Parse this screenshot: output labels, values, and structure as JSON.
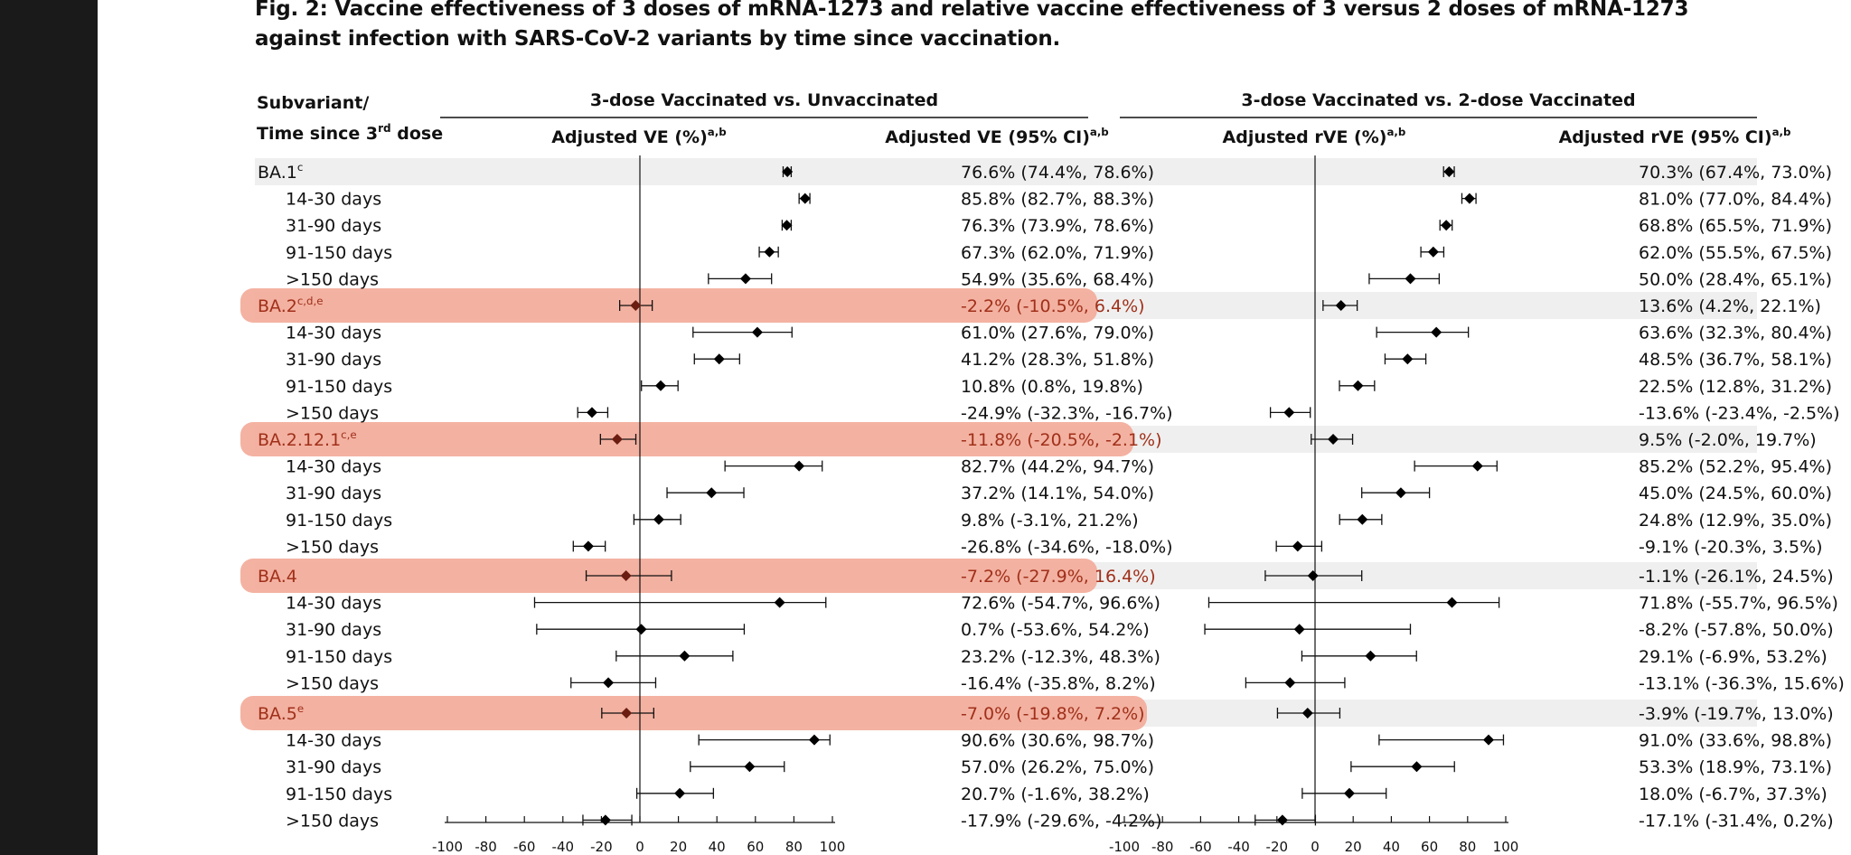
{
  "figure": {
    "title": "Fig. 2: Vaccine effectiveness of 3 doses of mRNA-1273 and relative vaccine effectiveness of 3 versus 2 doses of mRNA-1273 against infection with SARS-CoV-2 variants by time since vaccination.",
    "row_header": "Subvariant/",
    "row_header_line2": "Time since 3",
    "row_header_sup": "rd",
    "row_header_end": " dose",
    "highlight_color": "#f3aa98",
    "band_color": "#efefef"
  },
  "chart_data": [
    {
      "type": "forest",
      "title": "3-dose Vaccinated vs. Unvaccinated",
      "plot_header": "Adjusted VE (%)",
      "plot_header_sup": "a,b",
      "table_header": "Adjusted VE (95% CI)",
      "table_header_sup": "a,b",
      "xlim": [
        -100,
        100
      ],
      "xticks": [
        -100,
        -80,
        -60,
        -40,
        -20,
        0,
        20,
        40,
        60,
        80,
        100
      ],
      "rows": [
        {
          "label": "BA.1",
          "sup": "c",
          "group": true,
          "highlight": false,
          "est": 76.6,
          "lo": 74.4,
          "hi": 78.6,
          "text": "76.6% (74.4%, 78.6%)"
        },
        {
          "label": "14-30 days",
          "est": 85.8,
          "lo": 82.7,
          "hi": 88.3,
          "text": "85.8% (82.7%, 88.3%)"
        },
        {
          "label": "31-90 days",
          "est": 76.3,
          "lo": 73.9,
          "hi": 78.6,
          "text": "76.3% (73.9%, 78.6%)"
        },
        {
          "label": "91-150 days",
          "est": 67.3,
          "lo": 62.0,
          "hi": 71.9,
          "text": "67.3% (62.0%, 71.9%)"
        },
        {
          "label": ">150 days",
          "est": 54.9,
          "lo": 35.6,
          "hi": 68.4,
          "text": "54.9% (35.6%, 68.4%)"
        },
        {
          "label": "BA.2",
          "sup": "c,d,e",
          "group": true,
          "highlight": true,
          "est": -2.2,
          "lo": -10.5,
          "hi": 6.4,
          "text": "-2.2% (-10.5%, 6.4%)"
        },
        {
          "label": "14-30 days",
          "est": 61.0,
          "lo": 27.6,
          "hi": 79.0,
          "text": "61.0% (27.6%, 79.0%)"
        },
        {
          "label": "31-90 days",
          "est": 41.2,
          "lo": 28.3,
          "hi": 51.8,
          "text": "41.2% (28.3%, 51.8%)"
        },
        {
          "label": "91-150 days",
          "est": 10.8,
          "lo": 0.8,
          "hi": 19.8,
          "text": "10.8% (0.8%, 19.8%)"
        },
        {
          "label": ">150 days",
          "est": -24.9,
          "lo": -32.3,
          "hi": -16.7,
          "text": "-24.9% (-32.3%, -16.7%)"
        },
        {
          "label": "BA.2.12.1",
          "sup": "c,e",
          "group": true,
          "highlight": true,
          "est": -11.8,
          "lo": -20.5,
          "hi": -2.1,
          "text": "-11.8% (-20.5%, -2.1%)"
        },
        {
          "label": "14-30 days",
          "est": 82.7,
          "lo": 44.2,
          "hi": 94.7,
          "text": "82.7% (44.2%, 94.7%)"
        },
        {
          "label": "31-90 days",
          "est": 37.2,
          "lo": 14.1,
          "hi": 54.0,
          "text": "37.2% (14.1%, 54.0%)"
        },
        {
          "label": "91-150 days",
          "est": 9.8,
          "lo": -3.1,
          "hi": 21.2,
          "text": "9.8% (-3.1%, 21.2%)"
        },
        {
          "label": ">150 days",
          "est": -26.8,
          "lo": -34.6,
          "hi": -18.0,
          "text": "-26.8% (-34.6%, -18.0%)"
        },
        {
          "label": "BA.4",
          "sup": "",
          "group": true,
          "highlight": true,
          "est": -7.2,
          "lo": -27.9,
          "hi": 16.4,
          "text": "-7.2% (-27.9%, 16.4%)"
        },
        {
          "label": "14-30 days",
          "est": 72.6,
          "lo": -54.7,
          "hi": 96.6,
          "text": "72.6% (-54.7%, 96.6%)"
        },
        {
          "label": "31-90 days",
          "est": 0.7,
          "lo": -53.6,
          "hi": 54.2,
          "text": "0.7% (-53.6%, 54.2%)"
        },
        {
          "label": "91-150 days",
          "est": 23.2,
          "lo": -12.3,
          "hi": 48.3,
          "text": "23.2% (-12.3%, 48.3%)"
        },
        {
          "label": ">150 days",
          "est": -16.4,
          "lo": -35.8,
          "hi": 8.2,
          "text": "-16.4% (-35.8%, 8.2%)"
        },
        {
          "label": "BA.5",
          "sup": "e",
          "group": true,
          "highlight": true,
          "est": -7.0,
          "lo": -19.8,
          "hi": 7.2,
          "text": "-7.0% (-19.8%, 7.2%)"
        },
        {
          "label": "14-30 days",
          "est": 90.6,
          "lo": 30.6,
          "hi": 98.7,
          "text": "90.6% (30.6%, 98.7%)"
        },
        {
          "label": "31-90 days",
          "est": 57.0,
          "lo": 26.2,
          "hi": 75.0,
          "text": "57.0% (26.2%, 75.0%)"
        },
        {
          "label": "91-150 days",
          "est": 20.7,
          "lo": -1.6,
          "hi": 38.2,
          "text": "20.7% (-1.6%, 38.2%)"
        },
        {
          "label": ">150 days",
          "est": -17.9,
          "lo": -29.6,
          "hi": -4.2,
          "text": "-17.9% (-29.6%, -4.2%)"
        }
      ]
    },
    {
      "type": "forest",
      "title": "3-dose Vaccinated vs. 2-dose Vaccinated",
      "plot_header": "Adjusted rVE (%)",
      "plot_header_sup": "a,b",
      "table_header": "Adjusted rVE (95% CI)",
      "table_header_sup": "a,b",
      "xlim": [
        -100,
        100
      ],
      "xticks": [
        -100,
        -80,
        -60,
        -40,
        -20,
        0,
        20,
        40,
        60,
        80,
        100
      ],
      "rows": [
        {
          "est": 70.3,
          "lo": 67.4,
          "hi": 73.0,
          "text": "70.3% (67.4%, 73.0%)",
          "group": true
        },
        {
          "est": 81.0,
          "lo": 77.0,
          "hi": 84.4,
          "text": "81.0% (77.0%, 84.4%)"
        },
        {
          "est": 68.8,
          "lo": 65.5,
          "hi": 71.9,
          "text": "68.8% (65.5%, 71.9%)"
        },
        {
          "est": 62.0,
          "lo": 55.5,
          "hi": 67.5,
          "text": "62.0% (55.5%, 67.5%)"
        },
        {
          "est": 50.0,
          "lo": 28.4,
          "hi": 65.1,
          "text": "50.0% (28.4%, 65.1%)"
        },
        {
          "est": 13.6,
          "lo": 4.2,
          "hi": 22.1,
          "text": "13.6% (4.2%, 22.1%)",
          "group": true
        },
        {
          "est": 63.6,
          "lo": 32.3,
          "hi": 80.4,
          "text": "63.6% (32.3%, 80.4%)"
        },
        {
          "est": 48.5,
          "lo": 36.7,
          "hi": 58.1,
          "text": "48.5% (36.7%, 58.1%)"
        },
        {
          "est": 22.5,
          "lo": 12.8,
          "hi": 31.2,
          "text": "22.5% (12.8%, 31.2%)"
        },
        {
          "est": -13.6,
          "lo": -23.4,
          "hi": -2.5,
          "text": "-13.6% (-23.4%, -2.5%)"
        },
        {
          "est": 9.5,
          "lo": -2.0,
          "hi": 19.7,
          "text": "9.5% (-2.0%, 19.7%)",
          "group": true
        },
        {
          "est": 85.2,
          "lo": 52.2,
          "hi": 95.4,
          "text": "85.2% (52.2%, 95.4%)"
        },
        {
          "est": 45.0,
          "lo": 24.5,
          "hi": 60.0,
          "text": "45.0% (24.5%, 60.0%)"
        },
        {
          "est": 24.8,
          "lo": 12.9,
          "hi": 35.0,
          "text": "24.8% (12.9%, 35.0%)"
        },
        {
          "est": -9.1,
          "lo": -20.3,
          "hi": 3.5,
          "text": "-9.1% (-20.3%, 3.5%)"
        },
        {
          "est": -1.1,
          "lo": -26.1,
          "hi": 24.5,
          "text": "-1.1% (-26.1%, 24.5%)",
          "group": true
        },
        {
          "est": 71.8,
          "lo": -55.7,
          "hi": 96.5,
          "text": "71.8% (-55.7%, 96.5%)"
        },
        {
          "est": -8.2,
          "lo": -57.8,
          "hi": 50.0,
          "text": "-8.2% (-57.8%, 50.0%)"
        },
        {
          "est": 29.1,
          "lo": -6.9,
          "hi": 53.2,
          "text": "29.1% (-6.9%, 53.2%)"
        },
        {
          "est": -13.1,
          "lo": -36.3,
          "hi": 15.6,
          "text": "-13.1% (-36.3%, 15.6%)"
        },
        {
          "est": -3.9,
          "lo": -19.7,
          "hi": 13.0,
          "text": "-3.9% (-19.7%, 13.0%)",
          "group": true
        },
        {
          "est": 91.0,
          "lo": 33.6,
          "hi": 98.8,
          "text": "91.0% (33.6%, 98.8%)"
        },
        {
          "est": 53.3,
          "lo": 18.9,
          "hi": 73.1,
          "text": "53.3% (18.9%, 73.1%)"
        },
        {
          "est": 18.0,
          "lo": -6.7,
          "hi": 37.3,
          "text": "18.0% (-6.7%, 37.3%)"
        },
        {
          "est": -17.1,
          "lo": -31.4,
          "hi": 0.2,
          "text": "-17.1% (-31.4%, 0.2%)"
        }
      ]
    }
  ]
}
